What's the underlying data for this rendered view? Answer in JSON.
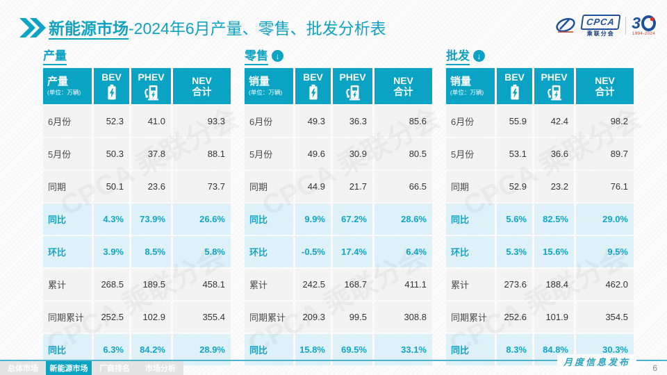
{
  "title": {
    "bold": "新能源市场",
    "rest": "-2024年6月产量、零售、批发分析表"
  },
  "logo": {
    "name": "CPCA",
    "subtitle": "乘联分会",
    "anniversary_number": "3",
    "anniversary_years": "1994-2024"
  },
  "watermark": "CPCA 乘联分会",
  "columns": [
    {
      "label": "BEV",
      "icon": "bev-battery-icon"
    },
    {
      "label": "PHEV",
      "icon": "phev-charger-icon"
    },
    {
      "label": "NEV\n合计",
      "icon": null
    }
  ],
  "unit": "(单位：万辆)",
  "tables": [
    {
      "section": "产量",
      "has_arrow": false,
      "corner": "产量",
      "rows": [
        {
          "label": "6月份",
          "values": [
            "52.3",
            "41.0",
            "93.3"
          ],
          "highlight": false
        },
        {
          "label": "5月份",
          "values": [
            "50.3",
            "37.8",
            "88.1"
          ],
          "highlight": false
        },
        {
          "label": "同期",
          "values": [
            "50.1",
            "23.6",
            "73.7"
          ],
          "highlight": false
        },
        {
          "label": "同比",
          "values": [
            "4.3%",
            "73.9%",
            "26.6%"
          ],
          "highlight": true
        },
        {
          "label": "环比",
          "values": [
            "3.9%",
            "8.5%",
            "5.8%"
          ],
          "highlight": true
        },
        {
          "label": "累计",
          "values": [
            "268.5",
            "189.5",
            "458.1"
          ],
          "highlight": false
        },
        {
          "label": "同期累计",
          "values": [
            "252.5",
            "102.9",
            "355.4"
          ],
          "highlight": false
        },
        {
          "label": "同比",
          "values": [
            "6.3%",
            "84.2%",
            "28.9%"
          ],
          "highlight": true
        }
      ]
    },
    {
      "section": "零售",
      "has_arrow": true,
      "corner": "销量",
      "rows": [
        {
          "label": "6月份",
          "values": [
            "49.3",
            "36.3",
            "85.6"
          ],
          "highlight": false
        },
        {
          "label": "5月份",
          "values": [
            "49.6",
            "30.9",
            "80.5"
          ],
          "highlight": false
        },
        {
          "label": "同期",
          "values": [
            "44.9",
            "21.7",
            "66.5"
          ],
          "highlight": false
        },
        {
          "label": "同比",
          "values": [
            "9.9%",
            "67.2%",
            "28.6%"
          ],
          "highlight": true
        },
        {
          "label": "环比",
          "values": [
            "-0.5%",
            "17.4%",
            "6.4%"
          ],
          "highlight": true
        },
        {
          "label": "累计",
          "values": [
            "242.5",
            "168.7",
            "411.1"
          ],
          "highlight": false
        },
        {
          "label": "同期累计",
          "values": [
            "209.3",
            "99.5",
            "308.8"
          ],
          "highlight": false
        },
        {
          "label": "同比",
          "values": [
            "15.8%",
            "69.5%",
            "33.1%"
          ],
          "highlight": true
        }
      ]
    },
    {
      "section": "批发",
      "has_arrow": true,
      "corner": "销量",
      "rows": [
        {
          "label": "6月份",
          "values": [
            "55.9",
            "42.4",
            "98.2"
          ],
          "highlight": false
        },
        {
          "label": "5月份",
          "values": [
            "53.1",
            "36.6",
            "89.7"
          ],
          "highlight": false
        },
        {
          "label": "同期",
          "values": [
            "52.9",
            "23.2",
            "76.1"
          ],
          "highlight": false
        },
        {
          "label": "同比",
          "values": [
            "5.6%",
            "82.5%",
            "29.0%"
          ],
          "highlight": true
        },
        {
          "label": "环比",
          "values": [
            "5.3%",
            "15.6%",
            "9.5%"
          ],
          "highlight": true
        },
        {
          "label": "累计",
          "values": [
            "273.6",
            "188.4",
            "462.0"
          ],
          "highlight": false
        },
        {
          "label": "同期累计",
          "values": [
            "252.6",
            "101.9",
            "354.5"
          ],
          "highlight": false
        },
        {
          "label": "同比",
          "values": [
            "8.3%",
            "84.8%",
            "30.3%"
          ],
          "highlight": true
        }
      ]
    }
  ],
  "footer": {
    "tabs": [
      {
        "label": "总体市场",
        "active": false
      },
      {
        "label": "新能源市场",
        "active": true
      },
      {
        "label": "厂商排名",
        "active": false
      },
      {
        "label": "市场分析",
        "active": false
      }
    ],
    "note": "月度信息发布",
    "page_number": "6"
  },
  "colors": {
    "teal": "#0ba3c3",
    "highlight_bg": "#def1f8",
    "highlight_text": "#12a5c7",
    "logo_blue": "#1c4f9c"
  }
}
